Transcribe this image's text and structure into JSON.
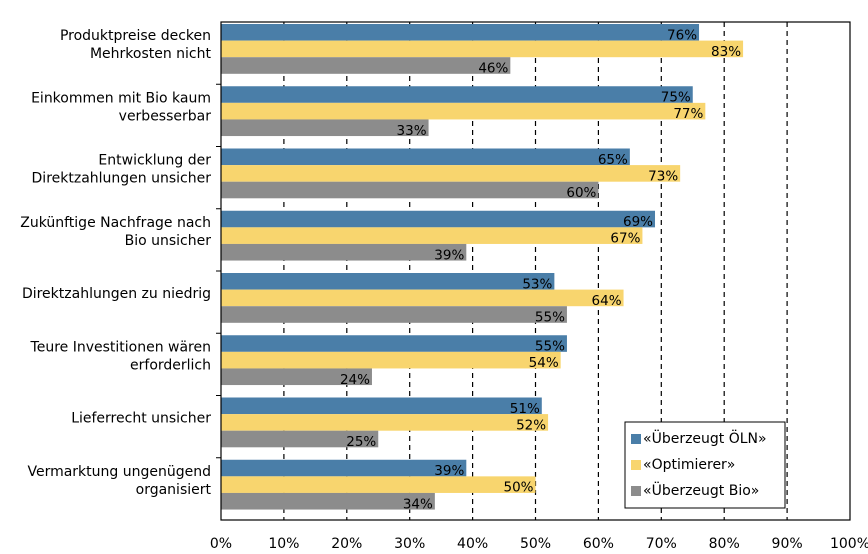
{
  "chart_data": {
    "type": "bar",
    "orientation": "horizontal",
    "categories": [
      [
        "Produktpreise decken",
        "Mehrkosten nicht"
      ],
      [
        "Einkommen mit Bio kaum",
        "verbesserbar"
      ],
      [
        "Entwicklung der",
        "Direktzahlungen unsicher"
      ],
      [
        "Zukünftige Nachfrage nach",
        "Bio unsicher"
      ],
      [
        "Direktzahlungen zu niedrig"
      ],
      [
        "Teure Investitionen wären",
        "erforderlich"
      ],
      [
        "Lieferrecht unsicher"
      ],
      [
        "Vermarktung ungenügend",
        "organisiert"
      ]
    ],
    "series": [
      {
        "name": "«Überzeugt ÖLN»",
        "color": "#4a7ea8",
        "values": [
          76,
          75,
          65,
          69,
          53,
          55,
          51,
          39
        ],
        "value_labels": [
          "76%",
          "75%",
          "65%",
          "69%",
          "53%",
          "55%",
          "51%",
          "39%"
        ]
      },
      {
        "name": "«Optimierer»",
        "color": "#f8d56e",
        "values": [
          83,
          77,
          73,
          67,
          64,
          54,
          52,
          50
        ],
        "value_labels": [
          "83%",
          "77%",
          "73%",
          "67%",
          "64%",
          "54%",
          "52%",
          "50%"
        ]
      },
      {
        "name": "«Überzeugt Bio»",
        "color": "#8c8c8c",
        "values": [
          46,
          33,
          60,
          39,
          55,
          24,
          25,
          34
        ],
        "value_labels": [
          "46%",
          "33%",
          "60%",
          "39%",
          "55%",
          "24%",
          "25%",
          "34%"
        ]
      }
    ],
    "xlim": [
      0,
      100
    ],
    "xticks": [
      {
        "value": 0,
        "label": "0%"
      },
      {
        "value": 10,
        "label": "10%"
      },
      {
        "value": 20,
        "label": "20%"
      },
      {
        "value": 30,
        "label": "30%"
      },
      {
        "value": 40,
        "label": "40%"
      },
      {
        "value": 50,
        "label": "50%"
      },
      {
        "value": 60,
        "label": "60%"
      },
      {
        "value": 70,
        "label": "70%"
      },
      {
        "value": 80,
        "label": "80%"
      },
      {
        "value": 90,
        "label": "90%"
      },
      {
        "value": 100,
        "label": "100%"
      }
    ],
    "grid": true,
    "legend": "lower right"
  }
}
